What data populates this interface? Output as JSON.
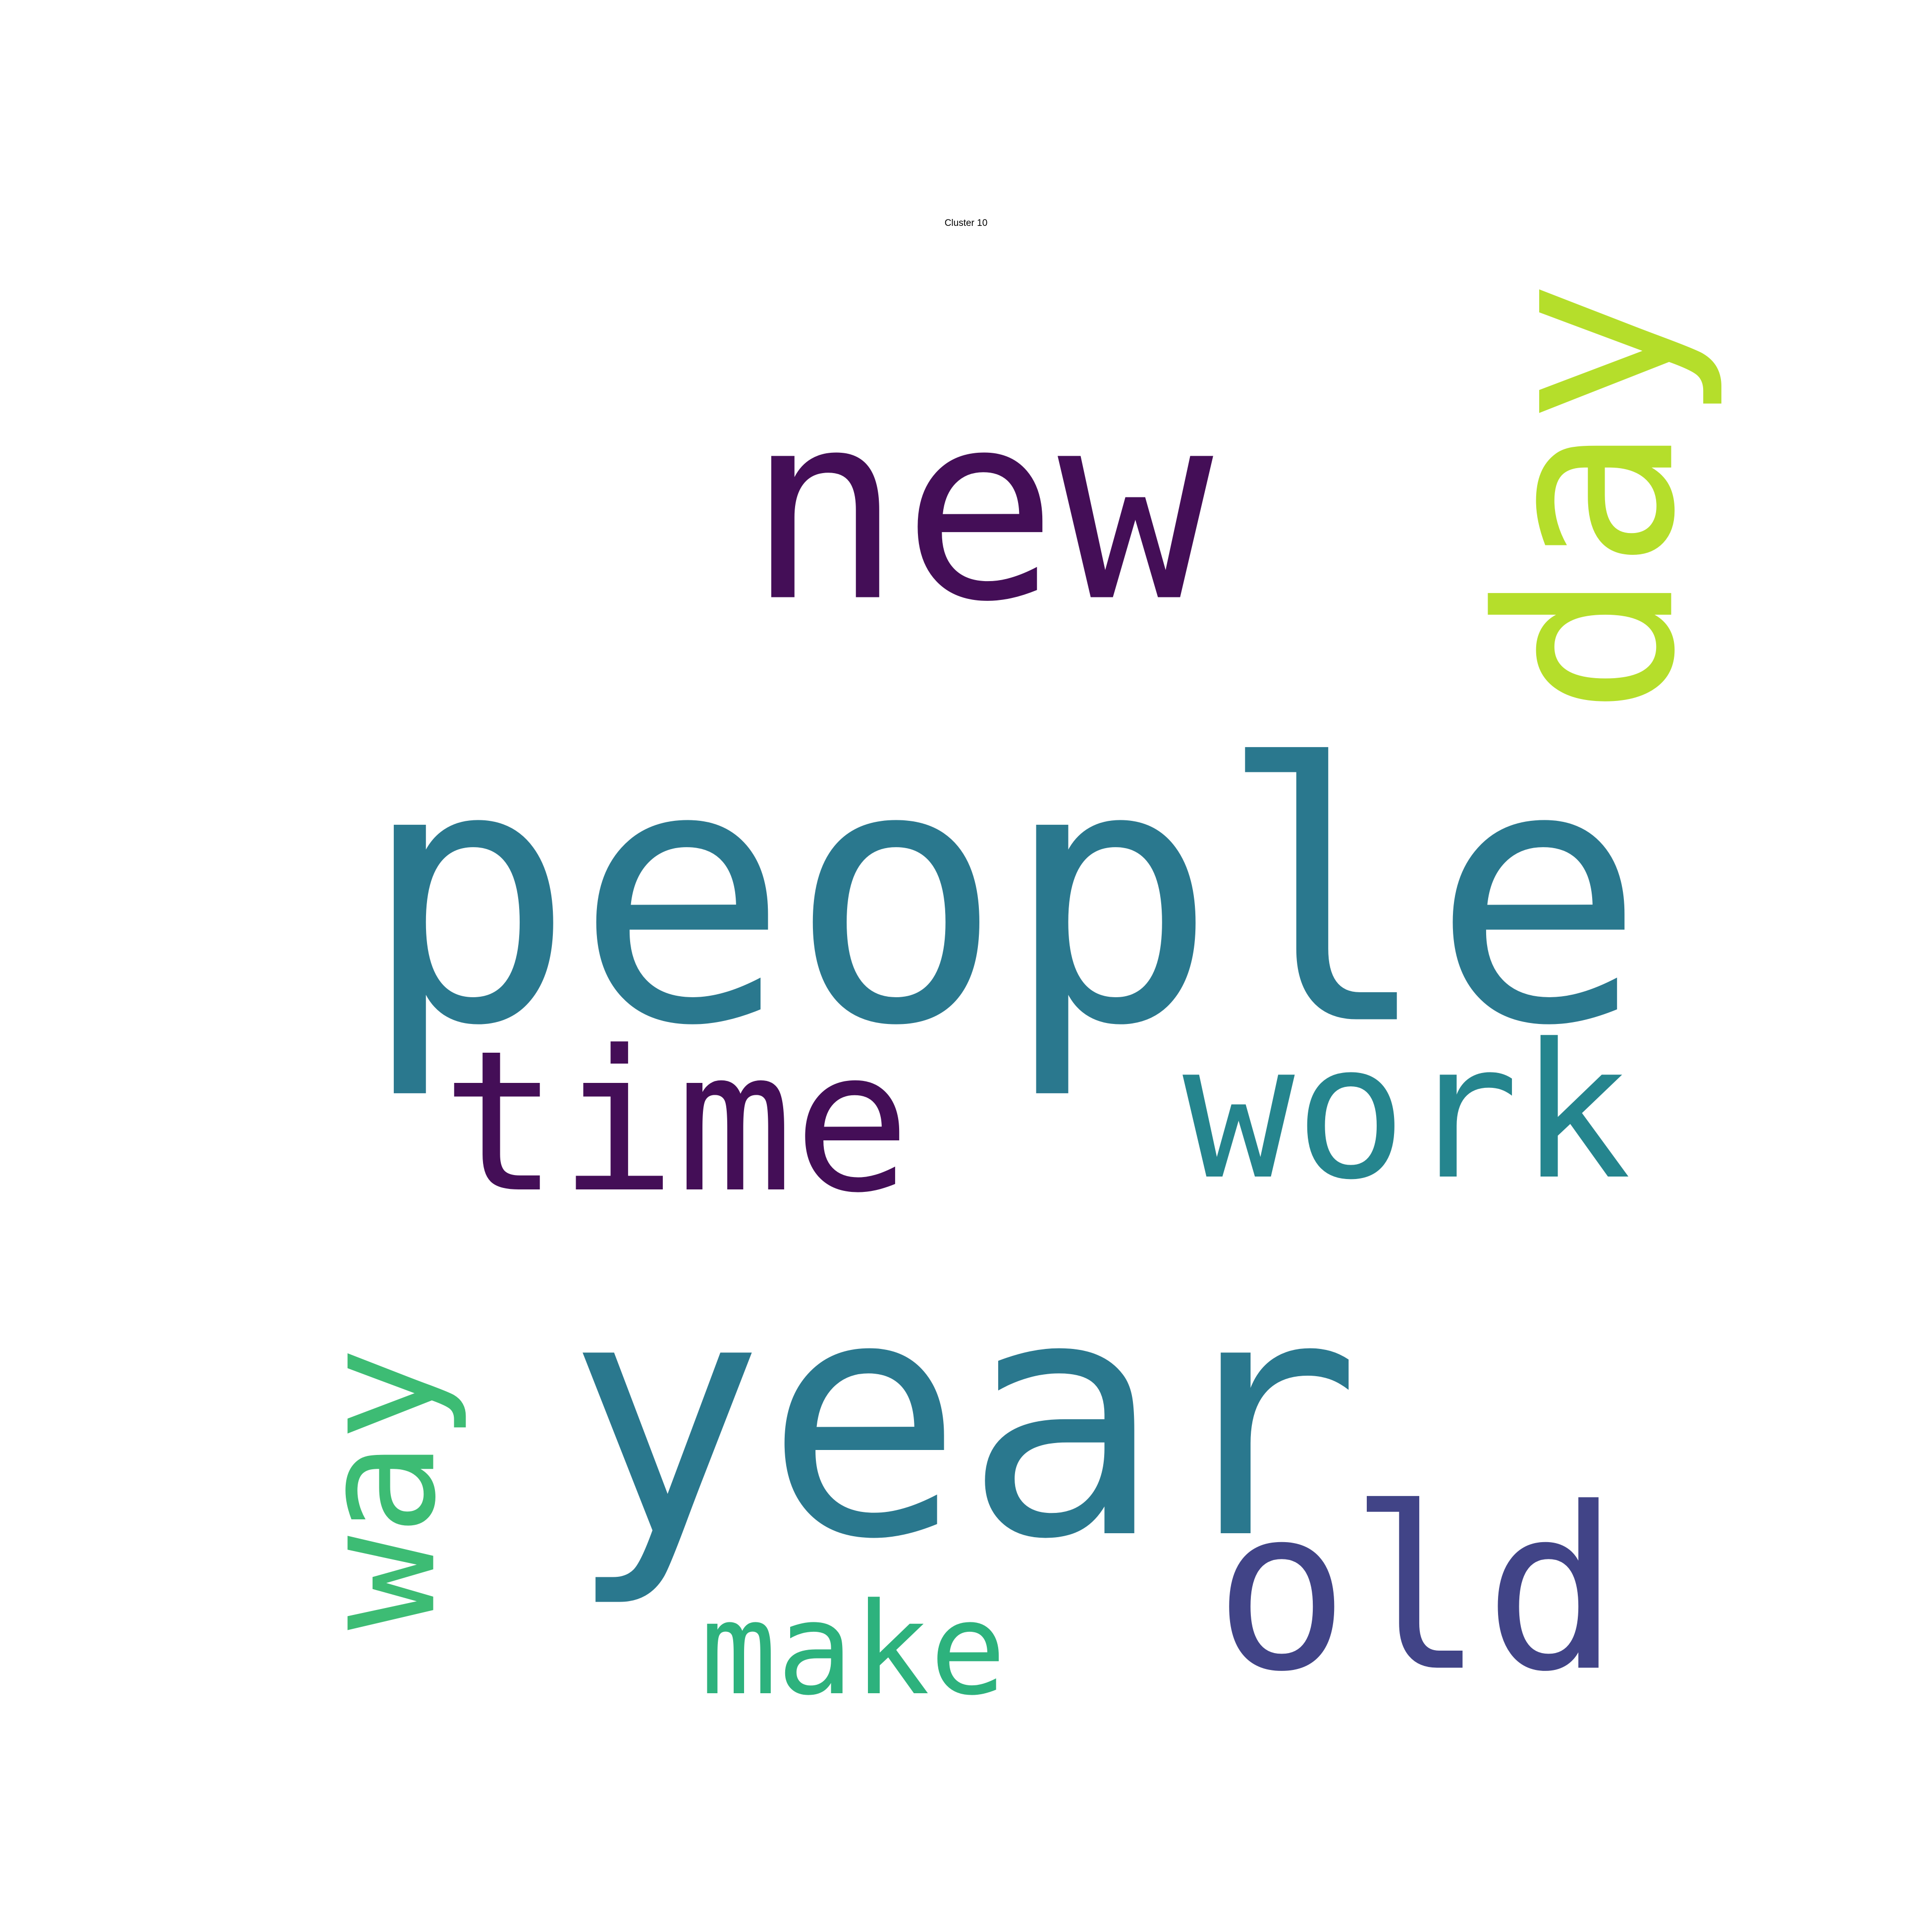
{
  "title": "Cluster 10",
  "words": [
    {
      "text": "new",
      "color": "#440e57",
      "rotated": false
    },
    {
      "text": "people",
      "color": "#2a788e",
      "rotated": false
    },
    {
      "text": "year",
      "color": "#2a788e",
      "rotated": false
    },
    {
      "text": "time",
      "color": "#440e57",
      "rotated": false
    },
    {
      "text": "work",
      "color": "#25858e",
      "rotated": false
    },
    {
      "text": "old",
      "color": "#414487",
      "rotated": false
    },
    {
      "text": "day",
      "color": "#b5de2b",
      "rotated": true
    },
    {
      "text": "way",
      "color": "#3dbc74",
      "rotated": true
    },
    {
      "text": "make",
      "color": "#2db27d",
      "rotated": false
    }
  ]
}
